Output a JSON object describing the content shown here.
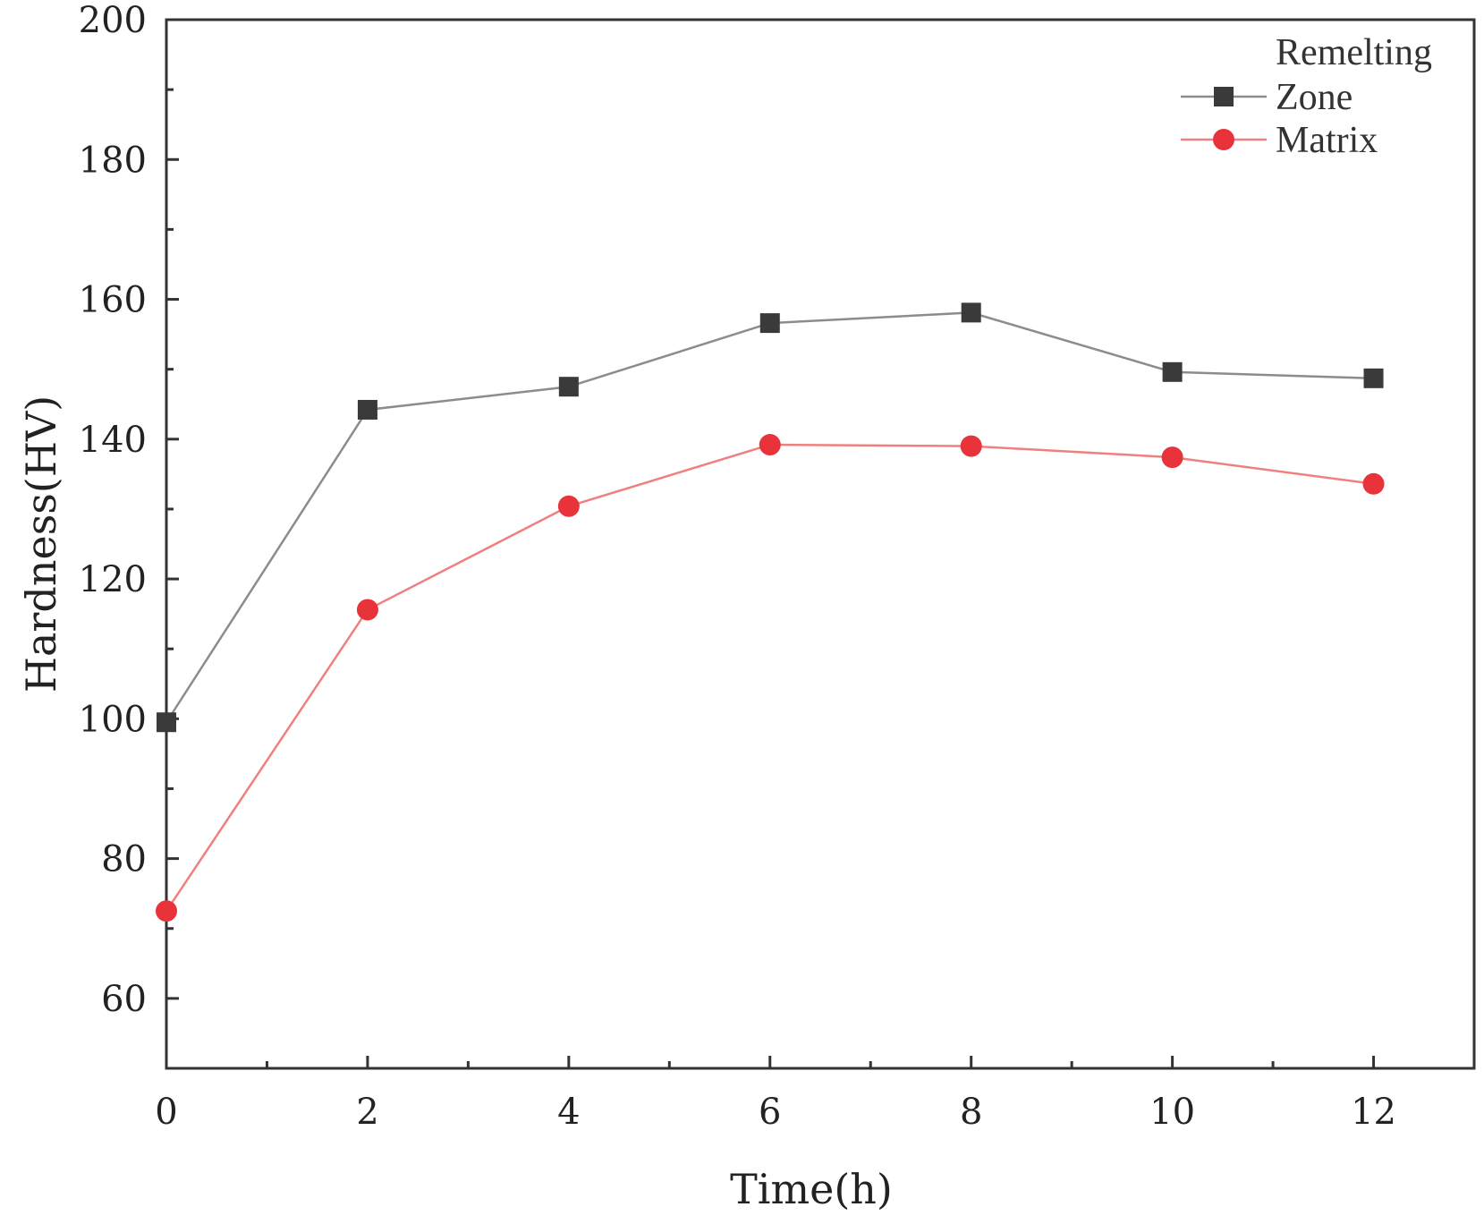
{
  "chart_data": {
    "type": "line",
    "title": "",
    "xlabel": "Time(h)",
    "ylabel": "Hardness(HV)",
    "xlim": [
      0,
      13
    ],
    "ylim": [
      50,
      200
    ],
    "x_ticks": [
      0,
      2,
      4,
      6,
      8,
      10,
      12
    ],
    "x_tick_labels": [
      "0",
      "2",
      "4",
      "6",
      "8",
      "10",
      "12"
    ],
    "y_ticks": [
      60,
      80,
      100,
      120,
      140,
      160,
      180,
      200
    ],
    "y_tick_labels": [
      "60",
      "80",
      "100",
      "120",
      "140",
      "160",
      "180",
      "200"
    ],
    "x": [
      0,
      2,
      4,
      6,
      8,
      10,
      12
    ],
    "series": [
      {
        "name": "Remelting Zone",
        "name_lines": [
          "Remelting",
          "Zone"
        ],
        "values": [
          99.5,
          144.2,
          147.5,
          156.6,
          158.1,
          149.6,
          148.7
        ],
        "color": "#8c8c8c",
        "marker_color": "#3a3a3a",
        "marker": "square"
      },
      {
        "name": "Matrix",
        "name_lines": [
          "Matrix"
        ],
        "values": [
          72.5,
          115.6,
          130.4,
          139.2,
          139.0,
          137.4,
          133.6
        ],
        "color": "#f08080",
        "marker_color": "#e8333a",
        "marker": "circle"
      }
    ],
    "legend_position": "top-right",
    "grid": false
  }
}
